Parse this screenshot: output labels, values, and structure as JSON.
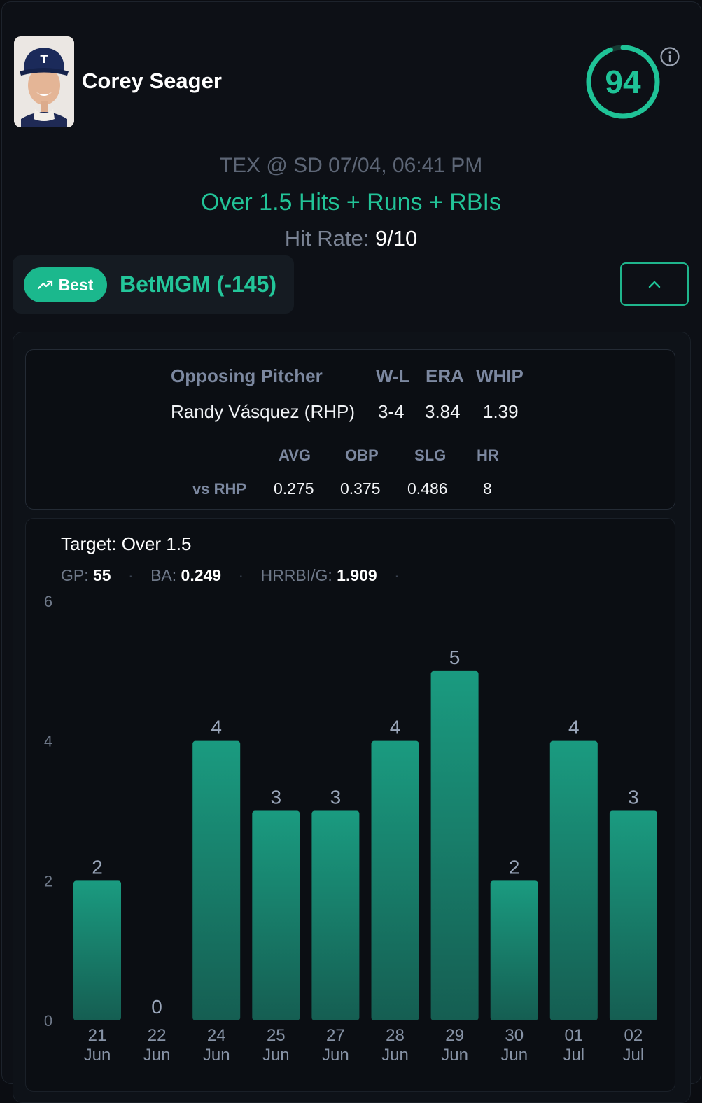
{
  "player": {
    "name": "Corey Seager",
    "score": "94",
    "score_fraction": 0.94,
    "avatar_icon": "player-headshot"
  },
  "game": {
    "matchup": "TEX @ SD 07/04, 06:41 PM",
    "prop": "Over 1.5 Hits + Runs + RBIs",
    "hit_rate_label": "Hit Rate:",
    "hit_rate_value": "9/10"
  },
  "book": {
    "best_label": "Best",
    "name": "BetMGM (-145)",
    "trend_icon": "trending-up-icon",
    "collapse_icon": "chevron-up-icon"
  },
  "pitcher": {
    "headers": [
      "Opposing Pitcher",
      "W-L",
      "ERA",
      "WHIP"
    ],
    "name": "Randy Vásquez (RHP)",
    "wl": "3-4",
    "era": "3.84",
    "whip": "1.39",
    "split_headers": [
      "AVG",
      "OBP",
      "SLG",
      "HR"
    ],
    "split_label": "vs RHP",
    "split_values": [
      "0.275",
      "0.375",
      "0.486",
      "8"
    ]
  },
  "target": {
    "label": "Target: Over 1.5",
    "gp_label": "GP:",
    "gp_value": "55",
    "ba_label": "BA:",
    "ba_value": "0.249",
    "hrrbi_label": "HRRBI/G:",
    "hrrbi_value": "1.909"
  },
  "colors": {
    "accent": "#1fc397",
    "bar_top": "#1a9b80",
    "bar_bottom": "#155e52"
  },
  "chart_data": {
    "type": "bar",
    "categories": [
      [
        "21",
        "Jun"
      ],
      [
        "22",
        "Jun"
      ],
      [
        "24",
        "Jun"
      ],
      [
        "25",
        "Jun"
      ],
      [
        "27",
        "Jun"
      ],
      [
        "28",
        "Jun"
      ],
      [
        "29",
        "Jun"
      ],
      [
        "30",
        "Jun"
      ],
      [
        "01",
        "Jul"
      ],
      [
        "02",
        "Jul"
      ]
    ],
    "values": [
      2,
      0,
      4,
      3,
      3,
      4,
      5,
      2,
      4,
      3
    ],
    "yticks": [
      0,
      2,
      4,
      6
    ],
    "ylim": [
      0,
      6
    ],
    "grid": false,
    "legend": "none"
  }
}
